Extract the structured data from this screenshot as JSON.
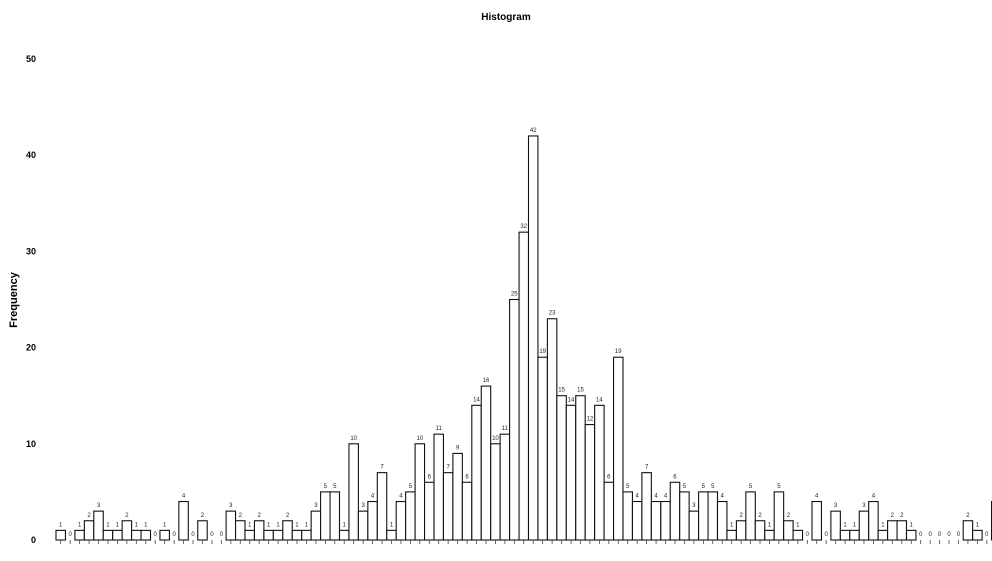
{
  "chart_data": {
    "type": "bar",
    "title": "Histogram",
    "xlabel": "",
    "ylabel": "Frequency",
    "ylim": [
      0,
      50
    ],
    "yticks": [
      0,
      10,
      20,
      30,
      40,
      50
    ],
    "grid": false,
    "legend": "none",
    "bar_color": "#ffffff",
    "edge_color": "#111111",
    "values": [
      1,
      0,
      1,
      2,
      3,
      1,
      1,
      2,
      1,
      1,
      0,
      1,
      0,
      4,
      0,
      2,
      0,
      0,
      3,
      2,
      1,
      2,
      1,
      1,
      2,
      1,
      1,
      3,
      5,
      5,
      1,
      10,
      3,
      4,
      7,
      1,
      4,
      5,
      10,
      6,
      11,
      7,
      9,
      6,
      14,
      16,
      10,
      11,
      25,
      32,
      42,
      19,
      23,
      15,
      14,
      15,
      12,
      14,
      6,
      19,
      5,
      4,
      7,
      4,
      4,
      6,
      5,
      3,
      5,
      5,
      4,
      1,
      2,
      5,
      2,
      1,
      5,
      2,
      1,
      0,
      4,
      0,
      3,
      1,
      1,
      3,
      4,
      1,
      2,
      2,
      1,
      0,
      0,
      0,
      0,
      0,
      2,
      1,
      0,
      4,
      1
    ]
  }
}
